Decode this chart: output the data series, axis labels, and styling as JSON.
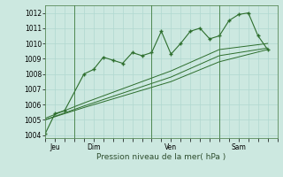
{
  "background_color": "#cce8e0",
  "grid_color": "#b0d8d0",
  "line_color": "#2d6e2d",
  "marker_color": "#2d6e2d",
  "xlabel": "Pression niveau de la mer( hPa )",
  "ylim": [
    1003.8,
    1012.5
  ],
  "yticks": [
    1004,
    1005,
    1006,
    1007,
    1008,
    1009,
    1010,
    1011,
    1012
  ],
  "xlim": [
    0,
    24
  ],
  "day_positions": [
    1,
    5,
    13,
    20
  ],
  "day_labels": [
    "Jeu",
    "Dim",
    "Ven",
    "Sam"
  ],
  "vline_positions": [
    3,
    11,
    18
  ],
  "series": [
    {
      "x": [
        0,
        1,
        2,
        4,
        5,
        6,
        7,
        8,
        9,
        10,
        11,
        12,
        13,
        14,
        15,
        16,
        17,
        18,
        19,
        20,
        21,
        22,
        23
      ],
      "y": [
        1004.1,
        1005.4,
        1005.6,
        1008.0,
        1008.3,
        1009.1,
        1008.9,
        1008.7,
        1009.4,
        1009.2,
        1009.4,
        1010.8,
        1009.3,
        1010.0,
        1010.8,
        1011.0,
        1010.3,
        1010.5,
        1011.5,
        1011.9,
        1012.0,
        1010.5,
        1009.6
      ],
      "has_markers": true
    },
    {
      "x": [
        0,
        4,
        13,
        18,
        23
      ],
      "y": [
        1005.0,
        1005.8,
        1007.5,
        1008.8,
        1009.6
      ],
      "has_markers": false
    },
    {
      "x": [
        0,
        4,
        13,
        18,
        23
      ],
      "y": [
        1005.0,
        1005.9,
        1007.8,
        1009.2,
        1009.7
      ],
      "has_markers": false
    },
    {
      "x": [
        0,
        4,
        13,
        18,
        23
      ],
      "y": [
        1005.1,
        1006.1,
        1008.2,
        1009.6,
        1010.0
      ],
      "has_markers": false
    }
  ]
}
